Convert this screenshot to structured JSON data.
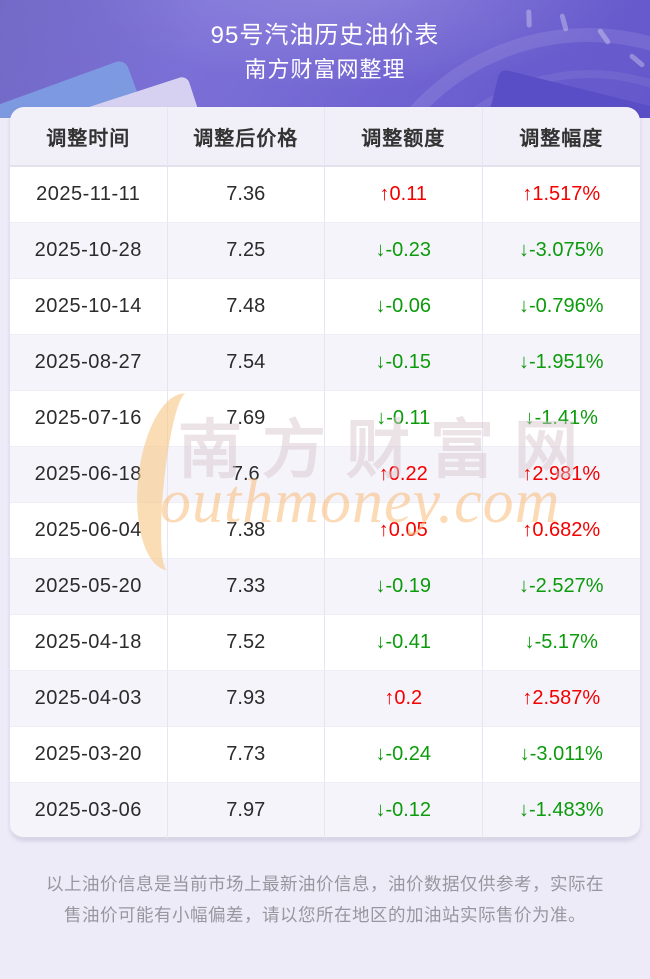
{
  "banner": {
    "title": "95号汽油历史油价表",
    "subtitle": "南方财富网整理"
  },
  "table": {
    "headers": [
      "调整时间",
      "调整后价格",
      "调整额度",
      "调整幅度"
    ],
    "rows": [
      {
        "date": "2025-11-11",
        "price": "7.36",
        "change": "↑0.11",
        "percent": "↑1.517%",
        "direction": "up"
      },
      {
        "date": "2025-10-28",
        "price": "7.25",
        "change": "↓-0.23",
        "percent": "↓-3.075%",
        "direction": "down"
      },
      {
        "date": "2025-10-14",
        "price": "7.48",
        "change": "↓-0.06",
        "percent": "↓-0.796%",
        "direction": "down"
      },
      {
        "date": "2025-08-27",
        "price": "7.54",
        "change": "↓-0.15",
        "percent": "↓-1.951%",
        "direction": "down"
      },
      {
        "date": "2025-07-16",
        "price": "7.69",
        "change": "↓-0.11",
        "percent": "↓-1.41%",
        "direction": "down"
      },
      {
        "date": "2025-06-18",
        "price": "7.6",
        "change": "↑0.22",
        "percent": "↑2.981%",
        "direction": "up"
      },
      {
        "date": "2025-06-04",
        "price": "7.38",
        "change": "↑0.05",
        "percent": "↑0.682%",
        "direction": "up"
      },
      {
        "date": "2025-05-20",
        "price": "7.33",
        "change": "↓-0.19",
        "percent": "↓-2.527%",
        "direction": "down"
      },
      {
        "date": "2025-04-18",
        "price": "7.52",
        "change": "↓-0.41",
        "percent": "↓-5.17%",
        "direction": "down"
      },
      {
        "date": "2025-04-03",
        "price": "7.93",
        "change": "↑0.2",
        "percent": "↑2.587%",
        "direction": "up"
      },
      {
        "date": "2025-03-20",
        "price": "7.73",
        "change": "↓-0.24",
        "percent": "↓-3.011%",
        "direction": "down"
      },
      {
        "date": "2025-03-06",
        "price": "7.97",
        "change": "↓-0.12",
        "percent": "↓-1.483%",
        "direction": "down"
      }
    ]
  },
  "watermark": {
    "cn": "南方财富网",
    "en": "outhmoney.com"
  },
  "footer": {
    "text": "以上油价信息是当前市场上最新油价信息，油价数据仅供参考，实际在售油价可能有小幅偏差，请以您所在地区的加油站实际售价为准。"
  },
  "colors": {
    "up": "#f40000",
    "down": "#0b9b0b",
    "banner_gradient_start": "#8279db",
    "banner_gradient_end": "#6458cb",
    "header_row_bg": "#f1f0f9",
    "alt_row_bg": "#f5f4fb",
    "page_bg": "#edebf7"
  }
}
